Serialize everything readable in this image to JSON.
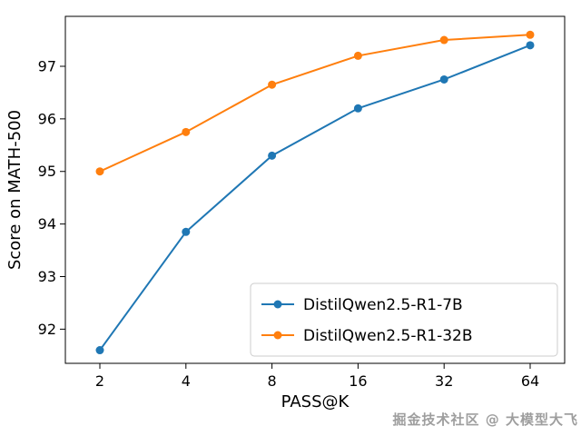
{
  "watermark": "掘金技术社区 @ 大模型大飞",
  "chart_data": {
    "type": "line",
    "x": [
      2,
      4,
      8,
      16,
      32,
      64
    ],
    "x_scale": "log2",
    "series": [
      {
        "name": "DistilQwen2.5-R1-7B",
        "color": "#1f77b4",
        "values": [
          91.6,
          93.85,
          95.3,
          96.2,
          96.75,
          97.4
        ]
      },
      {
        "name": "DistilQwen2.5-R1-32B",
        "color": "#ff7f0e",
        "values": [
          95.0,
          95.75,
          96.65,
          97.2,
          97.5,
          97.6
        ]
      }
    ],
    "xlabel": "PASS@K",
    "ylabel": "Score on MATH-500",
    "xticks": [
      2,
      4,
      8,
      16,
      32,
      64
    ],
    "yticks": [
      92,
      93,
      94,
      95,
      96,
      97
    ],
    "ylim": [
      91.35,
      97.95
    ],
    "grid": false,
    "legend_position": "lower right"
  }
}
